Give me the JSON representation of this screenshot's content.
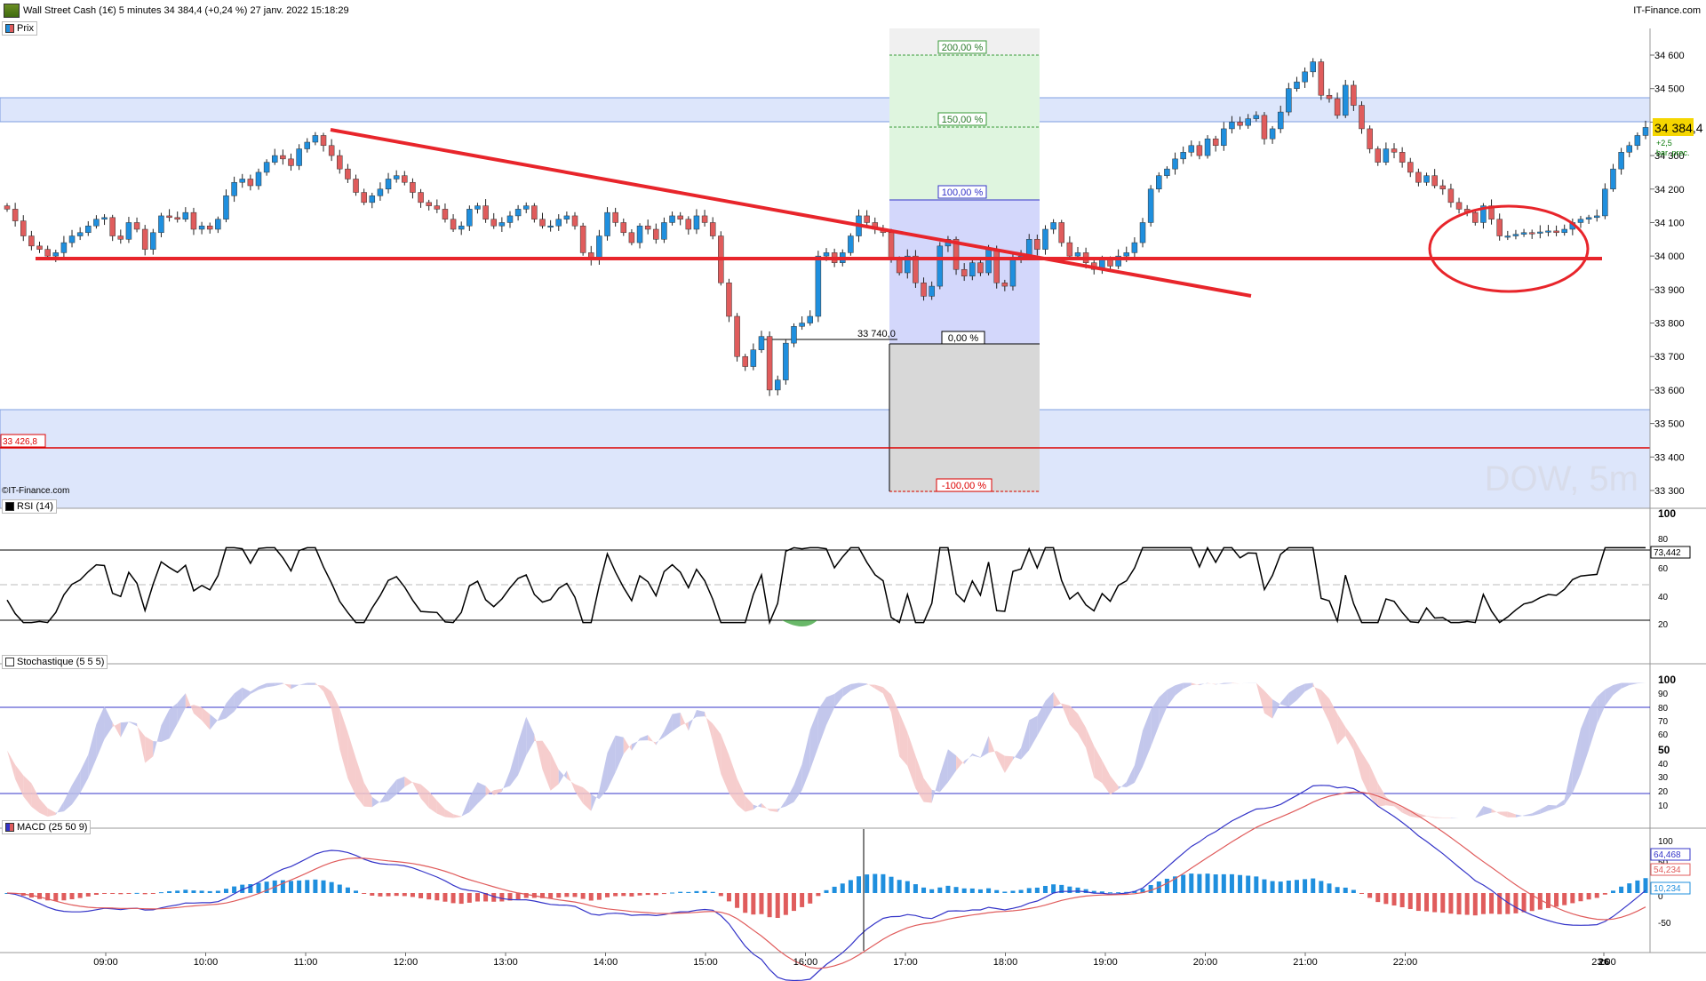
{
  "header": {
    "title": "Wall Street Cash (1€) 5 minutes 34 384,4 (+0,24 %) 27 janv. 2022 15:18:29",
    "brand": "IT-Finance.com"
  },
  "panels": {
    "price_label": "Prix",
    "rsi_label": "RSI (14)",
    "stoch_label": "Stochastique (5 5 5)",
    "macd_label": "MACD (25 50 9)",
    "watermark": "DOW, 5m",
    "source": "©IT-Finance.com"
  },
  "price_axis": {
    "ticks": [
      "34 600",
      "34 500",
      "34 400",
      "34 300",
      "34 200",
      "34 100",
      "34 000",
      "33 900",
      "33 800",
      "33 700",
      "33 600",
      "33 500",
      "33 400",
      "33 300"
    ],
    "tick_values": [
      34600,
      34500,
      34400,
      34300,
      34200,
      34100,
      34000,
      33900,
      33800,
      33700,
      33600,
      33500,
      33400,
      33300
    ],
    "current_price": "34 384,4",
    "change": "+2,5",
    "change_note": "bar. prec.",
    "red_level_label": "33 426,8",
    "low_marker_label": "33 740,0"
  },
  "fib": {
    "labels": [
      "200,00 %",
      "150,00 %",
      "100,00 %",
      "0,00 %",
      "-100,00 %"
    ]
  },
  "rsi_axis": {
    "ticks": [
      "100",
      "80",
      "60",
      "40",
      "20"
    ],
    "current": "73,442"
  },
  "stoch_axis": {
    "ticks": [
      "100",
      "90",
      "80",
      "70",
      "60",
      "50",
      "40",
      "30",
      "20",
      "10"
    ]
  },
  "macd_axis": {
    "ticks": [
      "100",
      "50",
      "0",
      "-50"
    ],
    "values": [
      "64,468",
      "54,234",
      "10,234"
    ]
  },
  "time_axis": {
    "labels": [
      "09:00",
      "10:00",
      "11:00",
      "12:00",
      "13:00",
      "14:00",
      "15:00",
      "16:00",
      "17:00",
      "18:00",
      "19:00",
      "20:00",
      "21:00",
      "22:00",
      "23:00",
      "26"
    ]
  },
  "colors": {
    "up": "#1f8fde",
    "down": "#e05c5c",
    "trend": "#e8252b",
    "zone": "#dde6fb",
    "fib_up": "#dff5df",
    "fib_mid": "#d3d7fb",
    "fib_down": "#d8d8d8"
  },
  "chart_data": {
    "type": "candlestick",
    "timeframe": "5 minutes",
    "ylim": [
      33250,
      34650
    ],
    "closes": [
      34140,
      34105,
      34060,
      34030,
      34020,
      34000,
      34010,
      34040,
      34060,
      34070,
      34090,
      34110,
      34115,
      34060,
      34050,
      34100,
      34080,
      34020,
      34070,
      34120,
      34115,
      34110,
      34130,
      34080,
      34090,
      34080,
      34110,
      34180,
      34220,
      34230,
      34210,
      34250,
      34280,
      34300,
      34290,
      34270,
      34320,
      34340,
      34360,
      34330,
      34300,
      34260,
      34230,
      34190,
      34160,
      34180,
      34200,
      34230,
      34240,
      34220,
      34190,
      34160,
      34150,
      34140,
      34110,
      34080,
      34090,
      34140,
      34150,
      34110,
      34090,
      34100,
      34120,
      34140,
      34150,
      34110,
      34090,
      34090,
      34110,
      34120,
      34090,
      34010,
      33990,
      34060,
      34130,
      34100,
      34070,
      34040,
      34090,
      34080,
      34050,
      34100,
      34120,
      34110,
      34080,
      34120,
      34100,
      34060,
      33920,
      33820,
      33700,
      33670,
      33720,
      33760,
      33600,
      33630,
      33740,
      33790,
      33800,
      33820,
      34000,
      34010,
      33980,
      34010,
      34060,
      34120,
      34100,
      34080,
      34070,
      33990,
      33950,
      34000,
      33920,
      33880,
      33910,
      34030,
      34050,
      33960,
      33940,
      33980,
      33950,
      34020,
      33920,
      33910,
      33990,
      34000,
      34050,
      34020,
      34080,
      34100,
      34040,
      34000,
      34010,
      33980,
      33960,
      33990,
      33970,
      34000,
      34010,
      34040,
      34100,
      34200,
      34240,
      34260,
      34290,
      34310,
      34330,
      34300,
      34350,
      34330,
      34380,
      34400,
      34390,
      34410,
      34420,
      34350,
      34380,
      34430,
      34500,
      34520,
      34550,
      34580,
      34480,
      34470,
      34420,
      34510,
      34450,
      34380,
      34320,
      34280,
      34320,
      34310,
      34280,
      34250,
      34220,
      34240,
      34210,
      34200,
      34160,
      34140,
      34130,
      34100,
      34150,
      34110,
      34060,
      34060,
      34065,
      34070,
      34068,
      34072,
      34075,
      34070,
      34080,
      34100,
      34110,
      34115,
      34120,
      34200,
      34260,
      34310,
      34330,
      34360,
      34384
    ]
  }
}
